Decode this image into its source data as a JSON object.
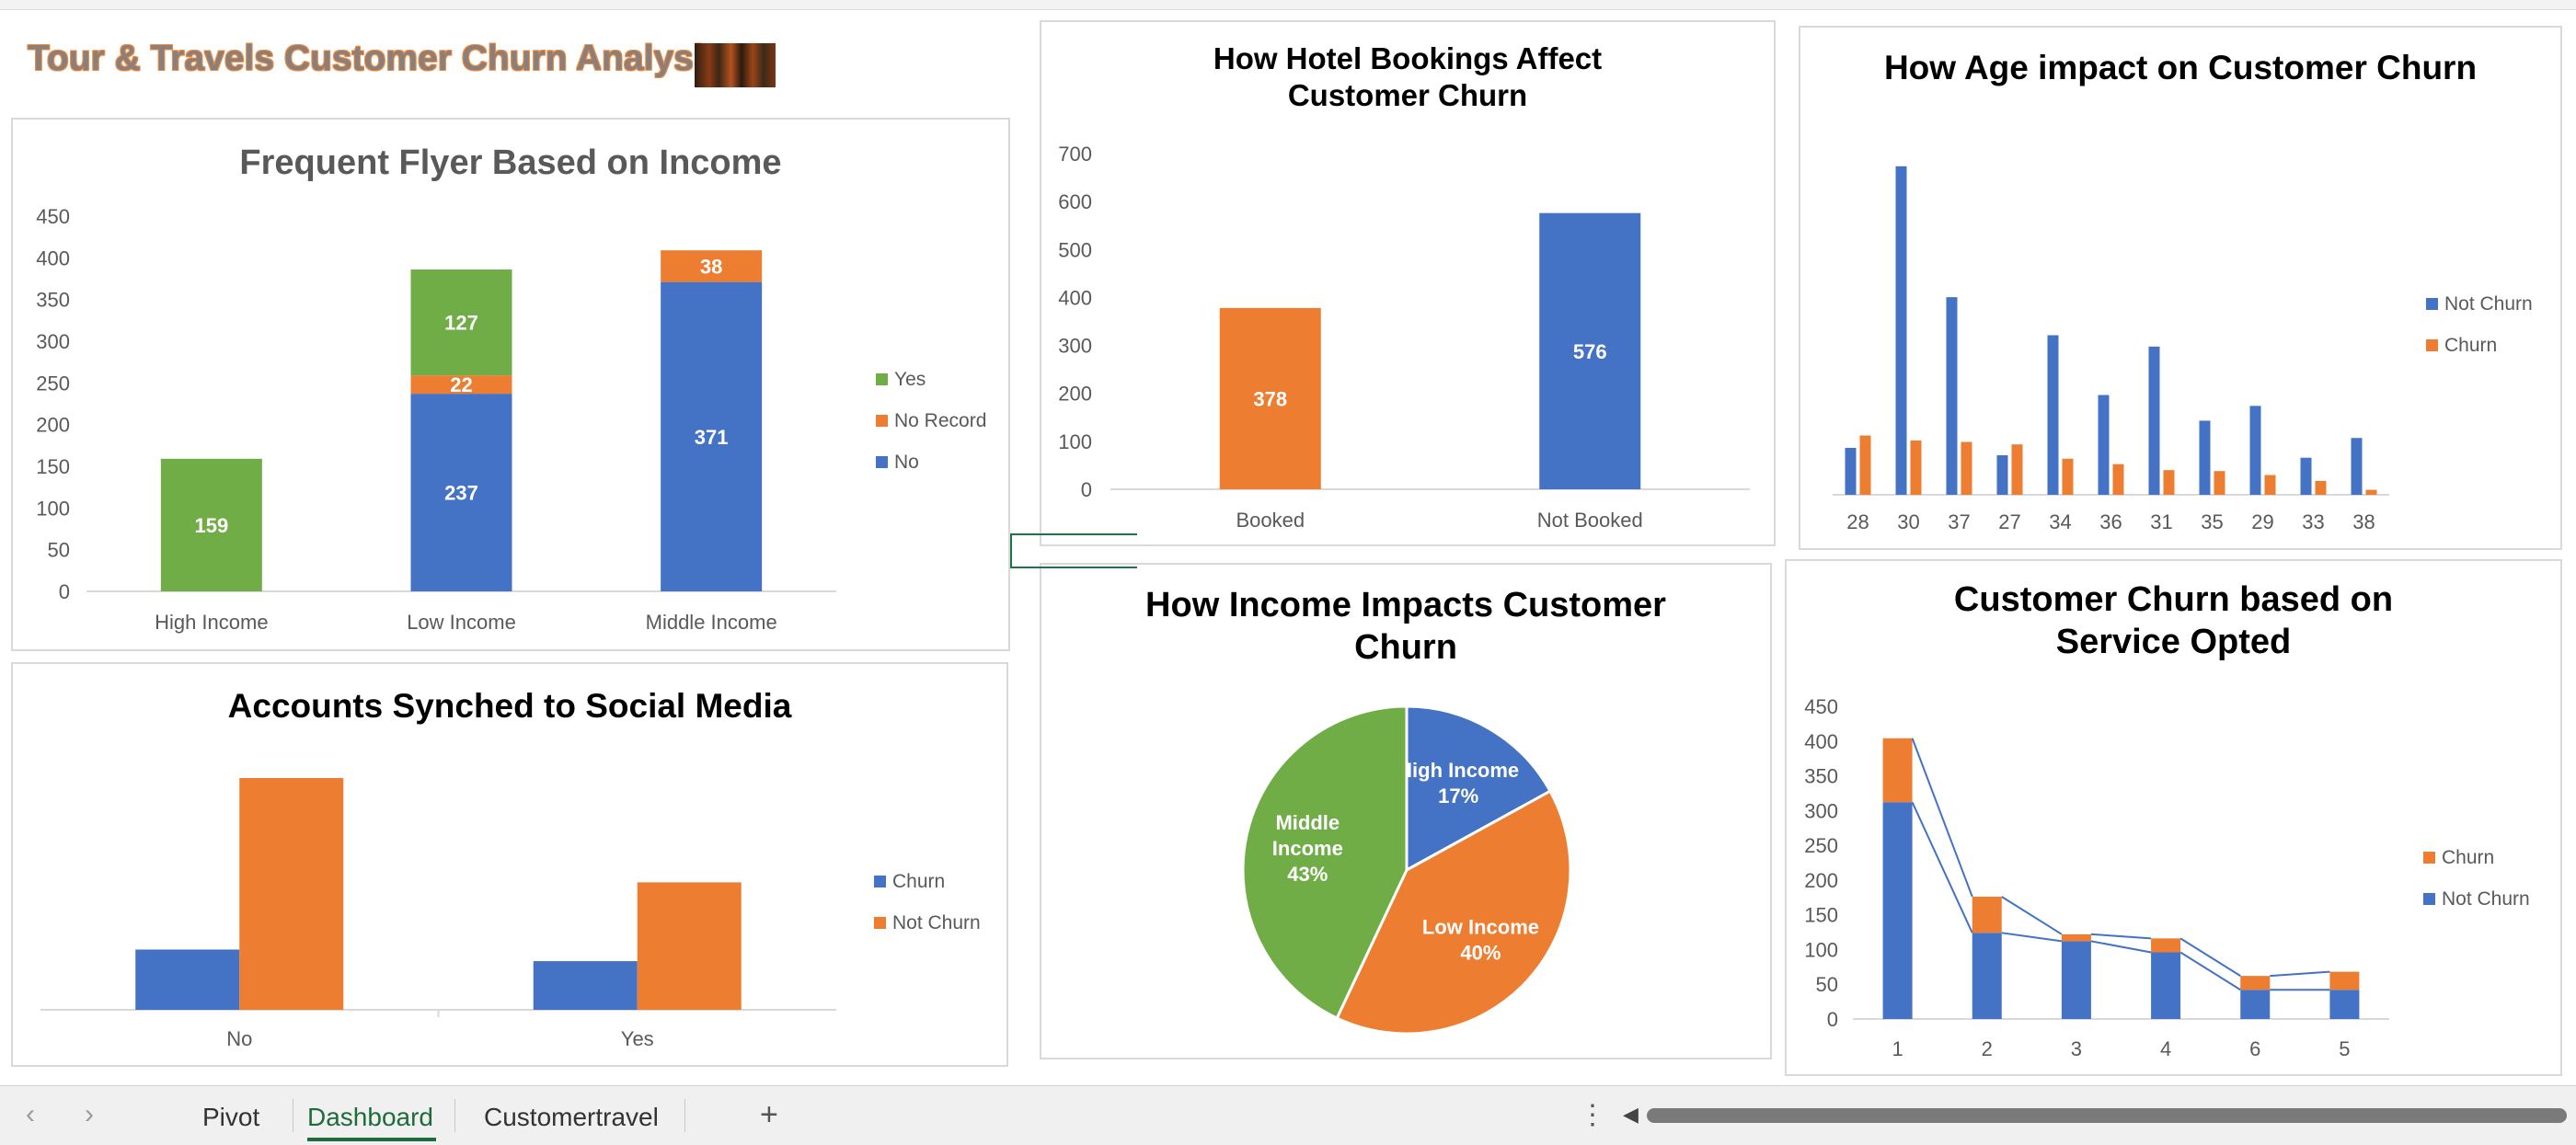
{
  "dashboard": {
    "title": "Tour & Travels Customer Churn Analysis"
  },
  "colors": {
    "blue": "#4472C4",
    "orange": "#ED7D31",
    "green": "#70AD47",
    "axis": "#595959"
  },
  "chart_data": [
    {
      "id": "frequent-flyer",
      "type": "bar",
      "stacked": true,
      "title": "Frequent Flyer Based on Income",
      "categories": [
        "High Income",
        "Low Income",
        "Middle Income"
      ],
      "series": [
        {
          "name": "No",
          "values": [
            0,
            237,
            371
          ],
          "color": "#4472C4"
        },
        {
          "name": "No Record",
          "values": [
            0,
            22,
            38
          ],
          "color": "#ED7D31"
        },
        {
          "name": "Yes",
          "values": [
            159,
            127,
            0
          ],
          "color": "#70AD47"
        }
      ],
      "yticks": [
        "0",
        "50",
        "100",
        "150",
        "200",
        "250",
        "300",
        "350",
        "400",
        "450"
      ],
      "ylim": [
        0,
        450
      ],
      "legend": [
        "Yes",
        "No Record",
        "No"
      ],
      "legend_position": "right"
    },
    {
      "id": "hotel-bookings",
      "type": "bar",
      "title": "How Hotel Bookings Affect Customer Churn",
      "categories": [
        "Booked",
        "Not Booked"
      ],
      "values": [
        378,
        576
      ],
      "colors": [
        "#ED7D31",
        "#4472C4"
      ],
      "yticks": [
        "0",
        "100",
        "200",
        "300",
        "400",
        "500",
        "600",
        "700"
      ],
      "ylim": [
        0,
        700
      ]
    },
    {
      "id": "age-impact",
      "type": "bar",
      "title": "How Age impact on Customer Churn",
      "categories": [
        "28",
        "30",
        "37",
        "27",
        "34",
        "36",
        "31",
        "35",
        "29",
        "33",
        "38"
      ],
      "series": [
        {
          "name": "Not Churn",
          "values": [
            95,
            665,
            400,
            80,
            323,
            202,
            300,
            150,
            180,
            75,
            115
          ],
          "color": "#4472C4"
        },
        {
          "name": "Churn",
          "values": [
            120,
            110,
            107,
            102,
            73,
            62,
            50,
            48,
            40,
            28,
            10
          ],
          "color": "#ED7D31"
        }
      ],
      "ylim": [
        0,
        700
      ],
      "legend": [
        "Not Churn",
        "Churn"
      ],
      "legend_position": "right"
    },
    {
      "id": "social-media",
      "type": "bar",
      "title": "Accounts Synched to Social Media",
      "categories": [
        "No",
        "Yes"
      ],
      "series": [
        {
          "name": "Churn",
          "values": [
            0.26,
            0.21
          ],
          "color": "#4472C4"
        },
        {
          "name": "Not Churn",
          "values": [
            1.0,
            0.55
          ],
          "color": "#ED7D31"
        }
      ],
      "legend": [
        "Churn",
        "Not Churn"
      ],
      "legend_position": "right"
    },
    {
      "id": "income-pie",
      "type": "pie",
      "title": "How Income Impacts Customer Churn",
      "slices": [
        {
          "label": "High Income",
          "percent_label": "17%",
          "value": 17,
          "color": "#4472C4"
        },
        {
          "label": "Low Income",
          "percent_label": "40%",
          "value": 40,
          "color": "#ED7D31"
        },
        {
          "label": "Middle Income",
          "percent_label": "43%",
          "value": 43,
          "color": "#70AD47"
        }
      ]
    },
    {
      "id": "service-opted",
      "type": "bar",
      "stacked": true,
      "title": "Customer Churn based on Service Opted",
      "categories": [
        "1",
        "2",
        "3",
        "4",
        "6",
        "5"
      ],
      "series": [
        {
          "name": "Not Churn",
          "values": [
            312,
            124,
            112,
            96,
            42,
            42
          ],
          "color": "#4472C4"
        },
        {
          "name": "Churn",
          "values": [
            92,
            52,
            10,
            20,
            20,
            26
          ],
          "color": "#ED7D31"
        }
      ],
      "yticks": [
        "0",
        "50",
        "100",
        "150",
        "200",
        "250",
        "300",
        "350",
        "400",
        "450"
      ],
      "ylim": [
        0,
        450
      ],
      "legend": [
        "Churn",
        "Not Churn"
      ],
      "legend_position": "right",
      "series_lines": true
    }
  ],
  "sheet_tabs": {
    "tabs": [
      "Pivot",
      "Dashboard",
      "Customertravel"
    ],
    "active": "Dashboard",
    "add_symbol": "+",
    "more_symbol": "⋮",
    "prev_symbol": "‹",
    "next_symbol": "›"
  }
}
